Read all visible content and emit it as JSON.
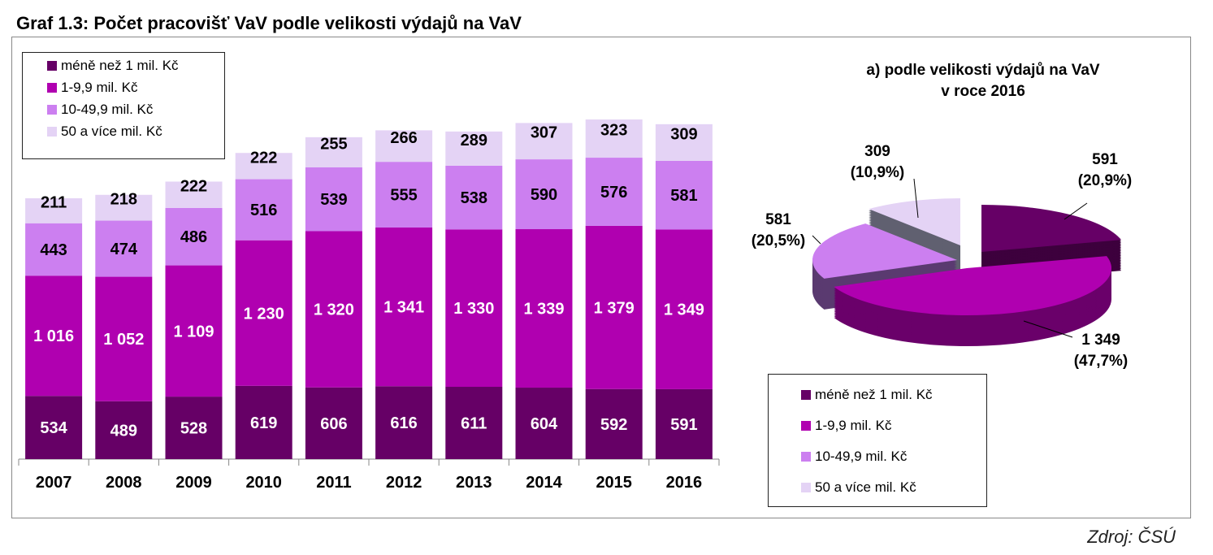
{
  "title": "Graf 1.3: Počet pracovišť VaV podle velikosti výdajů na VaV",
  "source": "Zdroj: ČSÚ",
  "colors": [
    "#660066",
    "#b000b0",
    "#cc7ff0",
    "#e4d3f5"
  ],
  "chart_data": [
    {
      "type": "bar",
      "stacked": true,
      "categories": [
        "2007",
        "2008",
        "2009",
        "2010",
        "2011",
        "2012",
        "2013",
        "2014",
        "2015",
        "2016"
      ],
      "series": [
        {
          "name": "méně než 1 mil. Kč",
          "values": [
            534,
            489,
            528,
            619,
            606,
            616,
            611,
            604,
            592,
            591
          ],
          "labels": [
            "534",
            "489",
            "528",
            "619",
            "606",
            "616",
            "611",
            "604",
            "592",
            "591"
          ]
        },
        {
          "name": "1-9,9 mil. Kč",
          "values": [
            1016,
            1052,
            1109,
            1230,
            1320,
            1341,
            1330,
            1339,
            1379,
            1349
          ],
          "labels": [
            "1 016",
            "1 052",
            "1 109",
            "1 230",
            "1 320",
            "1 341",
            "1 330",
            "1 339",
            "1 379",
            "1 349"
          ]
        },
        {
          "name": "10-49,9 mil. Kč",
          "values": [
            443,
            474,
            486,
            516,
            539,
            555,
            538,
            590,
            576,
            581
          ],
          "labels": [
            "443",
            "474",
            "486",
            "516",
            "539",
            "555",
            "538",
            "590",
            "576",
            "581"
          ]
        },
        {
          "name": "50 a více mil. Kč",
          "values": [
            211,
            218,
            222,
            222,
            255,
            266,
            289,
            307,
            323,
            309
          ],
          "labels": [
            "211",
            "218",
            "222",
            "222",
            "255",
            "266",
            "289",
            "307",
            "323",
            "309"
          ]
        }
      ],
      "legend": "top-left",
      "grid": false
    },
    {
      "type": "pie",
      "title_line1": "a) podle velikosti výdajů na VaV",
      "title_line2": "v roce 2016",
      "slices": [
        {
          "name": "méně než 1 mil. Kč",
          "value": 591,
          "label": "591",
          "pct": "(20,9%)"
        },
        {
          "name": "1-9,9 mil. Kč",
          "value": 1349,
          "label": "1 349",
          "pct": "(47,7%)"
        },
        {
          "name": "10-49,9 mil. Kč",
          "value": 581,
          "label": "581",
          "pct": "(20,5%)"
        },
        {
          "name": "50 a více mil. Kč",
          "value": 309,
          "label": "309",
          "pct": "(10,9%)"
        }
      ],
      "legend": "bottom"
    }
  ]
}
